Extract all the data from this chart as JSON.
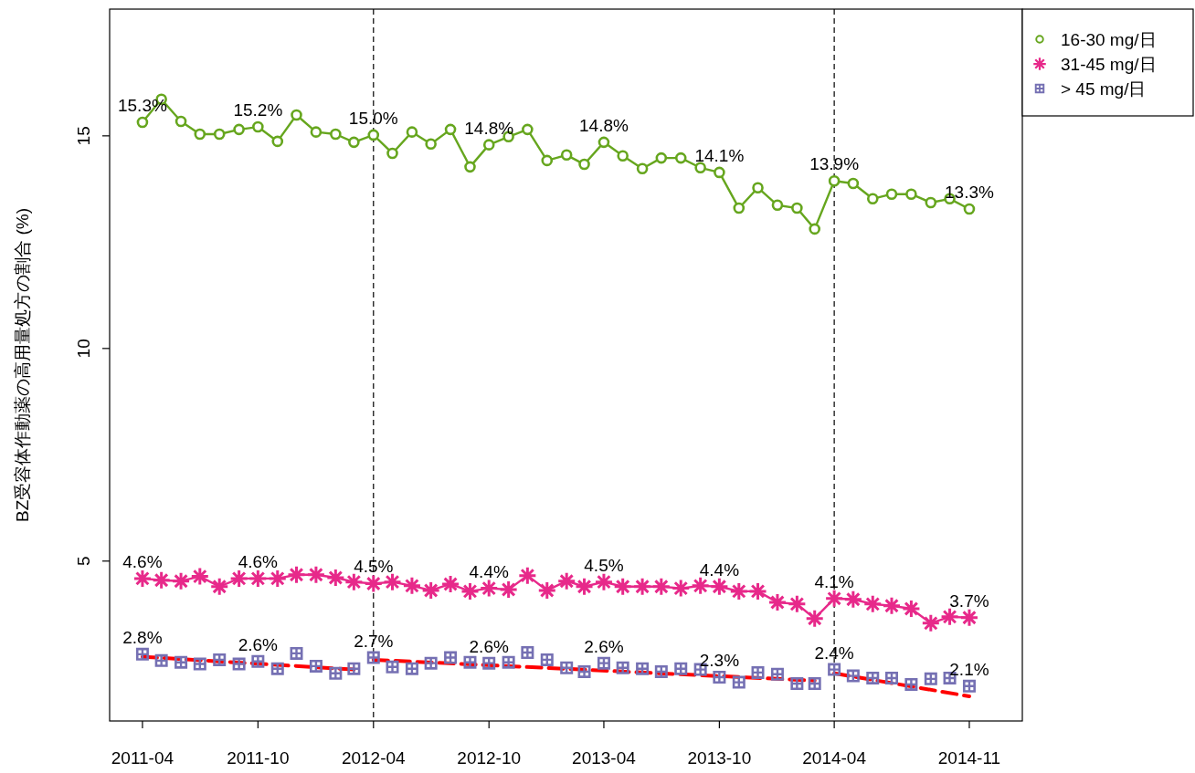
{
  "chart_data": {
    "type": "line",
    "ylabel": "BZ受容体作動薬の高用量処方の割合 (%)",
    "x": [
      "2011-04",
      "2011-05",
      "2011-06",
      "2011-07",
      "2011-08",
      "2011-09",
      "2011-10",
      "2011-11",
      "2011-12",
      "2012-01",
      "2012-02",
      "2012-03",
      "2012-04",
      "2012-05",
      "2012-06",
      "2012-07",
      "2012-08",
      "2012-09",
      "2012-10",
      "2012-11",
      "2012-12",
      "2013-01",
      "2013-02",
      "2013-03",
      "2013-04",
      "2013-05",
      "2013-06",
      "2013-07",
      "2013-08",
      "2013-09",
      "2013-10",
      "2013-11",
      "2013-12",
      "2014-01",
      "2014-02",
      "2014-03",
      "2014-04",
      "2014-05",
      "2014-06",
      "2014-07",
      "2014-08",
      "2014-09",
      "2014-10",
      "2014-11"
    ],
    "xlim": [
      "2011-02-08",
      "2015-01-24"
    ],
    "ylim": [
      1.24,
      17.98
    ],
    "xticks": [
      "2011-04",
      "2011-10",
      "2012-04",
      "2012-10",
      "2013-04",
      "2013-10",
      "2014-04",
      "2014-11"
    ],
    "yticks": [
      5,
      10,
      15
    ],
    "legend": "top right",
    "ref_lines": [
      {
        "axis": "x",
        "value": "2012-04",
        "color": "#000000",
        "line_style": "dashed"
      },
      {
        "axis": "x",
        "value": "2014-04",
        "color": "#000000",
        "line_style": "dashed"
      }
    ],
    "series": [
      {
        "name": "16-30 mg/日",
        "color": "#66a61e",
        "marker": "circle",
        "line_style": "solid",
        "values": [
          15.32,
          15.86,
          15.34,
          15.04,
          15.04,
          15.15,
          15.21,
          14.87,
          15.49,
          15.09,
          15.04,
          14.85,
          15.02,
          14.59,
          15.09,
          14.81,
          15.15,
          14.27,
          14.79,
          14.98,
          15.15,
          14.42,
          14.55,
          14.33,
          14.85,
          14.53,
          14.23,
          14.48,
          14.48,
          14.25,
          14.14,
          13.3,
          13.78,
          13.37,
          13.3,
          12.81,
          13.94,
          13.88,
          13.52,
          13.63,
          13.63,
          13.43,
          13.52,
          13.28
        ],
        "value_labels": [
          "15.3%",
          null,
          null,
          null,
          null,
          null,
          "15.2%",
          null,
          null,
          null,
          null,
          null,
          "15.0%",
          null,
          null,
          null,
          null,
          null,
          "14.8%",
          null,
          null,
          null,
          null,
          null,
          "14.8%",
          null,
          null,
          null,
          null,
          null,
          "14.1%",
          null,
          null,
          null,
          null,
          null,
          "13.9%",
          null,
          null,
          null,
          null,
          null,
          null,
          "13.3%"
        ]
      },
      {
        "name": "31-45 mg/日",
        "color": "#e7298a",
        "marker": "cross",
        "line_style": "solid",
        "values": [
          4.59,
          4.55,
          4.53,
          4.64,
          4.4,
          4.59,
          4.59,
          4.59,
          4.68,
          4.68,
          4.61,
          4.51,
          4.47,
          4.51,
          4.42,
          4.31,
          4.46,
          4.29,
          4.36,
          4.33,
          4.66,
          4.31,
          4.53,
          4.4,
          4.51,
          4.4,
          4.4,
          4.4,
          4.36,
          4.42,
          4.4,
          4.29,
          4.29,
          4.03,
          3.99,
          3.65,
          4.12,
          4.1,
          3.99,
          3.95,
          3.88,
          3.54,
          3.69,
          3.67
        ],
        "value_labels": [
          "4.6%",
          null,
          null,
          null,
          null,
          null,
          "4.6%",
          null,
          null,
          null,
          null,
          null,
          "4.5%",
          null,
          null,
          null,
          null,
          null,
          "4.4%",
          null,
          null,
          null,
          null,
          null,
          "4.5%",
          null,
          null,
          null,
          null,
          null,
          "4.4%",
          null,
          null,
          null,
          null,
          null,
          "4.1%",
          null,
          null,
          null,
          null,
          null,
          null,
          "3.7%"
        ]
      },
      {
        "name": "> 45 mg/日",
        "color": "#7570b3",
        "type": "scatter",
        "marker": "square",
        "values": [
          2.81,
          2.66,
          2.62,
          2.58,
          2.68,
          2.58,
          2.64,
          2.47,
          2.83,
          2.53,
          2.36,
          2.47,
          2.73,
          2.51,
          2.47,
          2.6,
          2.73,
          2.62,
          2.6,
          2.62,
          2.85,
          2.68,
          2.49,
          2.4,
          2.6,
          2.49,
          2.47,
          2.4,
          2.47,
          2.45,
          2.27,
          2.15,
          2.38,
          2.34,
          2.12,
          2.12,
          2.45,
          2.3,
          2.25,
          2.25,
          2.1,
          2.23,
          2.25,
          2.06
        ],
        "value_labels": [
          "2.8%",
          null,
          null,
          null,
          null,
          null,
          "2.6%",
          null,
          null,
          null,
          null,
          null,
          "2.7%",
          null,
          null,
          null,
          null,
          null,
          "2.6%",
          null,
          null,
          null,
          null,
          null,
          "2.6%",
          null,
          null,
          null,
          null,
          null,
          "2.3%",
          null,
          null,
          null,
          null,
          null,
          "2.4%",
          null,
          null,
          null,
          null,
          null,
          null,
          "2.1%"
        ]
      },
      {
        "type": "line",
        "color": "#ff0000",
        "line_style": "dashed",
        "marker": "none",
        "x": [
          "2011-04",
          "2012-03"
        ],
        "values": [
          2.75,
          2.45
        ]
      },
      {
        "type": "line",
        "color": "#ff0000",
        "line_style": "dashed",
        "marker": "none",
        "x": [
          "2012-04",
          "2014-03"
        ],
        "values": [
          2.68,
          2.19
        ]
      },
      {
        "type": "line",
        "color": "#ff0000",
        "line_style": "dashed",
        "marker": "none",
        "x": [
          "2014-04",
          "2014-11"
        ],
        "values": [
          2.36,
          1.82
        ]
      }
    ]
  }
}
